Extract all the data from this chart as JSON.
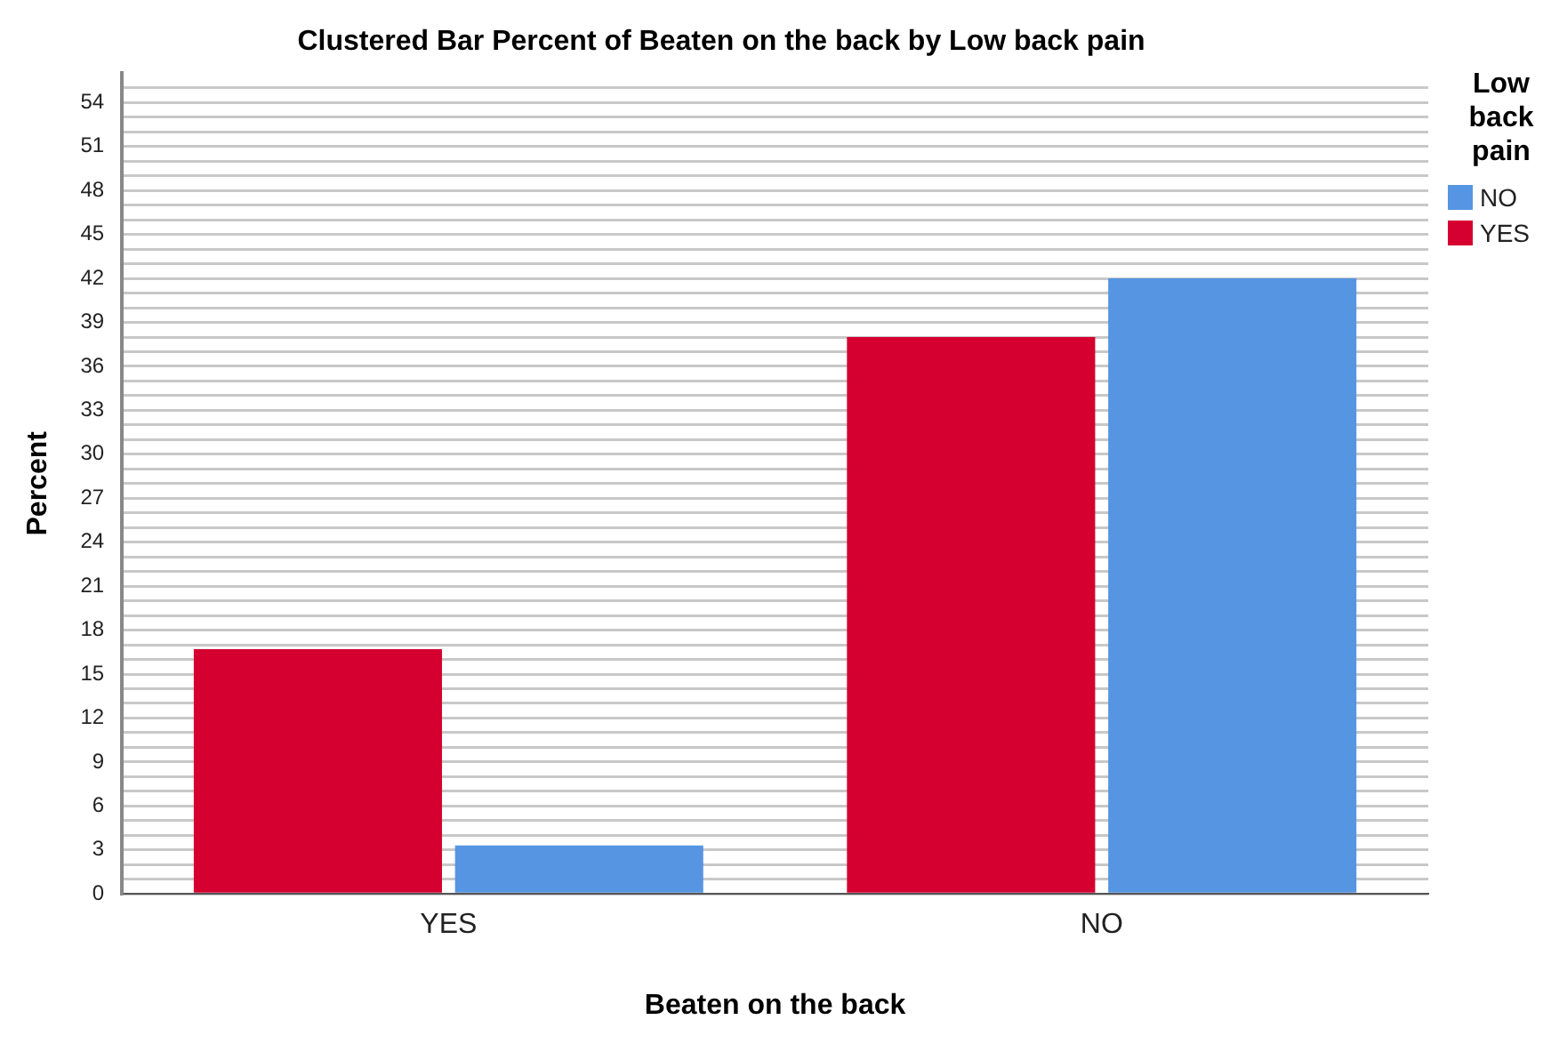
{
  "chart_data": {
    "type": "bar",
    "title": "Clustered Bar Percent of Beaten on the back by Low back pain",
    "xlabel": "Beaten on the back",
    "ylabel": "Percent",
    "legend_title": "Low back pain",
    "legend": "top right",
    "categories": [
      "YES",
      "NO"
    ],
    "series": [
      {
        "name": "YES",
        "color": "#d5002f",
        "values": [
          16.7,
          38.0
        ]
      },
      {
        "name": "NO",
        "color": "#5595e2",
        "values": [
          3.3,
          42.0
        ]
      }
    ],
    "ylim": [
      0,
      56
    ],
    "yticks": [
      0,
      {
        "value": 1,
        "label": null
      },
      {
        "value": 2,
        "label": null
      },
      3,
      {
        "value": 4,
        "label": null
      },
      {
        "value": 5,
        "label": null
      },
      6,
      {
        "value": 7,
        "label": null
      },
      {
        "value": 8,
        "label": null
      },
      9,
      {
        "value": 10,
        "label": null
      },
      {
        "value": 11,
        "label": null
      },
      12,
      {
        "value": 13,
        "label": null
      },
      {
        "value": 14,
        "label": null
      },
      15,
      {
        "value": 16,
        "label": null
      },
      {
        "value": 17,
        "label": null
      },
      18,
      {
        "value": 19,
        "label": null
      },
      {
        "value": 20,
        "label": null
      },
      21,
      {
        "value": 22,
        "label": null
      },
      {
        "value": 23,
        "label": null
      },
      24,
      {
        "value": 25,
        "label": null
      },
      {
        "value": 26,
        "label": null
      },
      27,
      {
        "value": 28,
        "label": null
      },
      {
        "value": 29,
        "label": null
      },
      30,
      {
        "value": 31,
        "label": null
      },
      {
        "value": 32,
        "label": null
      },
      33,
      {
        "value": 34,
        "label": null
      },
      {
        "value": 35,
        "label": null
      },
      36,
      {
        "value": 37,
        "label": null
      },
      {
        "value": 38,
        "label": null
      },
      39,
      {
        "value": 40,
        "label": null
      },
      {
        "value": 41,
        "label": null
      },
      42,
      {
        "value": 43,
        "label": null
      },
      {
        "value": 44,
        "label": null
      },
      45,
      {
        "value": 46,
        "label": null
      },
      {
        "value": 47,
        "label": null
      },
      48,
      {
        "value": 49,
        "label": null
      },
      {
        "value": 50,
        "label": null
      },
      51,
      {
        "value": 52,
        "label": null
      },
      {
        "value": 53,
        "label": null
      },
      54,
      {
        "value": 55,
        "label": null
      }
    ],
    "grid": "y"
  }
}
